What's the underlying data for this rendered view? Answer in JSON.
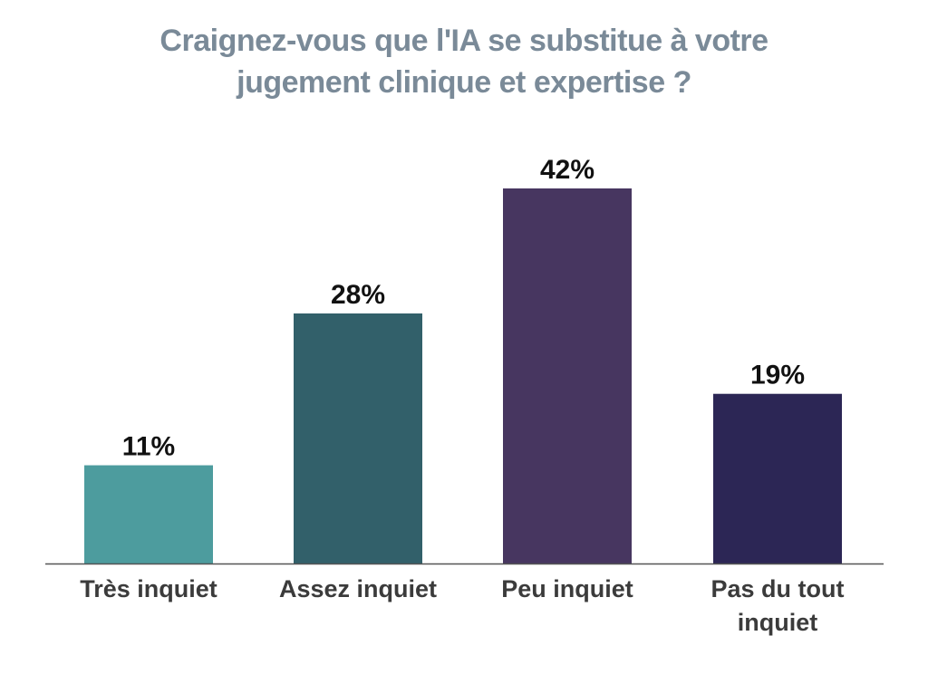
{
  "chart_data": {
    "type": "bar",
    "title_lines": [
      "Craignez-vous que l'IA se substitue à votre",
      "jugement clinique et expertise ?"
    ],
    "categories": [
      [
        "Très inquiet"
      ],
      [
        "Assez inquiet"
      ],
      [
        "Peu inquiet"
      ],
      [
        "Pas du tout",
        "inquiet"
      ]
    ],
    "values": [
      11,
      28,
      42,
      19
    ],
    "value_labels": [
      "11%",
      "28%",
      "42%",
      "19%"
    ],
    "colors": [
      "#4d9c9e",
      "#32606a",
      "#473660",
      "#2c2655"
    ],
    "ylim": [
      0,
      42
    ],
    "grid": false,
    "legend": "none"
  }
}
